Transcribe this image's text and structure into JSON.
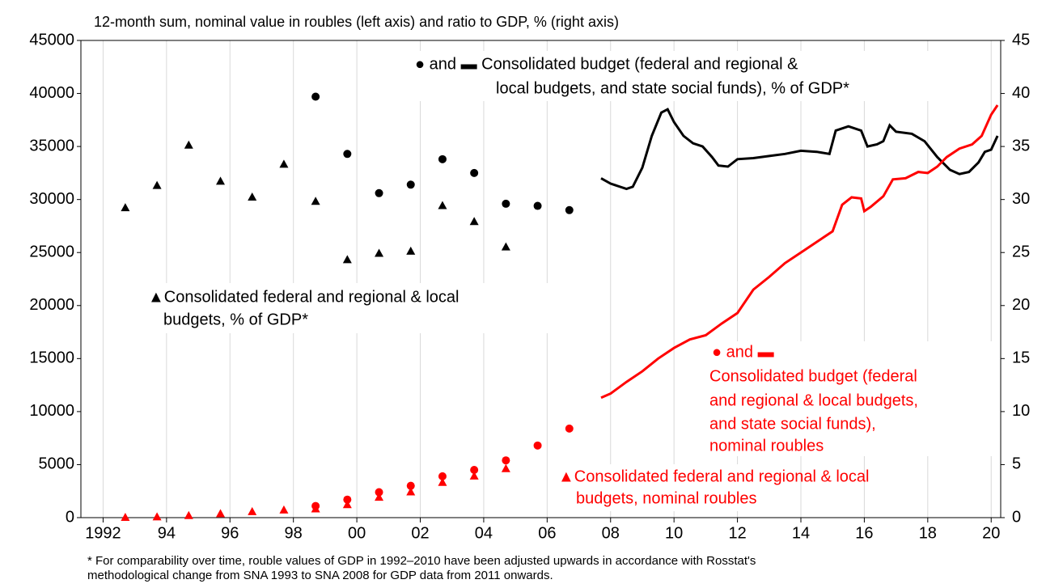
{
  "chart_data": {
    "type": "line",
    "title": "12-month sum, nominal value in roubles (left axis) and ratio to GDP, % (right axis)",
    "xlim": [
      1991.3,
      2020.3
    ],
    "xticks": [
      1992,
      {
        "value": 1994,
        "label": "94"
      },
      {
        "value": 1996,
        "label": "96"
      },
      {
        "value": 1998,
        "label": "98"
      },
      {
        "value": 2000,
        "label": "00"
      },
      {
        "value": 2002,
        "label": "02"
      },
      {
        "value": 2004,
        "label": "04"
      },
      {
        "value": 2006,
        "label": "06"
      },
      {
        "value": 2008,
        "label": "08"
      },
      {
        "value": 2010,
        "label": "10"
      },
      {
        "value": 2012,
        "label": "12"
      },
      {
        "value": 2014,
        "label": "14"
      },
      {
        "value": 2016,
        "label": "16"
      },
      {
        "value": 2018,
        "label": "18"
      },
      {
        "value": 2020,
        "label": "20"
      }
    ],
    "ylim": [
      0,
      45000
    ],
    "yticks": [
      0,
      5000,
      10000,
      15000,
      20000,
      25000,
      30000,
      35000,
      40000,
      45000
    ],
    "y2lim": [
      0,
      45
    ],
    "y2ticks": [
      0,
      5,
      10,
      15,
      20,
      25,
      30,
      35,
      40,
      45
    ],
    "grid": true,
    "series": [
      {
        "marker": "triangle",
        "color": "#000000",
        "axis": "y2",
        "x": [
          1992.7,
          1993.7,
          1994.7,
          1995.7,
          1996.7,
          1997.7,
          1998.7,
          1999.7,
          2000.7,
          2001.7,
          2002.7,
          2003.7,
          2004.7
        ],
        "values": [
          29.2,
          31.3,
          35.1,
          31.7,
          30.2,
          33.3,
          29.8,
          24.3,
          24.9,
          25.1,
          29.4,
          27.9,
          25.5
        ]
      },
      {
        "marker": "circle",
        "color": "#000000",
        "axis": "y2",
        "x": [
          1998.7,
          1999.7,
          2000.7,
          2001.7,
          2002.7,
          2003.7,
          2004.7,
          2005.7,
          2006.7
        ],
        "values": [
          39.7,
          34.3,
          30.6,
          31.4,
          33.8,
          32.5,
          29.6,
          29.4,
          29.0
        ]
      },
      {
        "marker": "line",
        "color": "#000000",
        "axis": "y2",
        "x": [
          2007.7,
          2008.0,
          2008.5,
          2008.7,
          2009.0,
          2009.3,
          2009.6,
          2009.8,
          2010.0,
          2010.3,
          2010.6,
          2010.9,
          2011.2,
          2011.4,
          2011.7,
          2012.0,
          2012.5,
          2013.0,
          2013.5,
          2014.0,
          2014.5,
          2014.9,
          2015.1,
          2015.5,
          2015.9,
          2016.1,
          2016.4,
          2016.6,
          2016.8,
          2017.0,
          2017.5,
          2017.9,
          2018.3,
          2018.7,
          2019.0,
          2019.3,
          2019.6,
          2019.8,
          2020.0,
          2020.2
        ],
        "values": [
          32.0,
          31.5,
          31.0,
          31.2,
          33.0,
          36.0,
          38.2,
          38.5,
          37.3,
          36.0,
          35.3,
          35.0,
          34.0,
          33.2,
          33.1,
          33.8,
          33.9,
          34.1,
          34.3,
          34.6,
          34.5,
          34.3,
          36.5,
          36.9,
          36.5,
          35.0,
          35.2,
          35.5,
          37.0,
          36.4,
          36.2,
          35.5,
          34.0,
          32.8,
          32.4,
          32.6,
          33.5,
          34.5,
          34.7,
          36.0
        ]
      },
      {
        "marker": "line",
        "color": "#ff0000",
        "x": [
          2007.7,
          2008.0,
          2008.5,
          2009.0,
          2009.5,
          2010.0,
          2010.5,
          2011.0,
          2011.5,
          2012.0,
          2012.5,
          2013.0,
          2013.5,
          2014.0,
          2014.5,
          2015.0,
          2015.3,
          2015.6,
          2015.9,
          2016.0,
          2016.2,
          2016.6,
          2016.9,
          2017.3,
          2017.7,
          2018.0,
          2018.3,
          2018.6,
          2019.0,
          2019.4,
          2019.7,
          2020.0,
          2020.2
        ],
        "values": [
          11300,
          11700,
          12800,
          13800,
          15000,
          16000,
          16800,
          17200,
          18300,
          19300,
          21500,
          22700,
          24000,
          25000,
          26000,
          27000,
          29500,
          30200,
          30100,
          28900,
          29300,
          30300,
          31900,
          32000,
          32600,
          32500,
          33100,
          34000,
          34800,
          35200,
          36000,
          38000,
          38900
        ]
      },
      {
        "marker": "circle",
        "color": "#ff0000",
        "x": [
          1998.7,
          1999.7,
          2000.7,
          2001.7,
          2002.7,
          2003.7,
          2004.7,
          2005.7,
          2006.7
        ],
        "values": [
          1100,
          1700,
          2400,
          3000,
          3900,
          4500,
          5400,
          6800,
          8400
        ]
      },
      {
        "marker": "triangle",
        "color": "#ff0000",
        "x": [
          1992.7,
          1993.7,
          1994.7,
          1995.7,
          1996.7,
          1997.7,
          1998.7,
          1999.7,
          2000.7,
          2001.7,
          2002.7,
          2003.7,
          2004.7
        ],
        "values": [
          0,
          50,
          170,
          350,
          540,
          700,
          800,
          1200,
          1900,
          2400,
          3300,
          3900,
          4600
        ]
      }
    ],
    "annotations": [
      {
        "color": "#000000",
        "lines": [
          "● and ▬ Consolidated budget (federal and regional &",
          "local budgets, and state social funds), % of GDP*"
        ]
      },
      {
        "color": "#000000",
        "lines": [
          "▲Consolidated federal and regional & local",
          "budgets, % of GDP*"
        ]
      },
      {
        "color": "#ff0000",
        "lines": [
          "● and ▬",
          "Consolidated budget (federal",
          "and regional & local budgets,",
          "and state social funds),",
          "nominal roubles"
        ]
      },
      {
        "color": "#ff0000",
        "lines": [
          "▲Consolidated federal and regional & local",
          "budgets, nominal roubles"
        ]
      }
    ],
    "footnote": [
      "* For comparability over time, rouble values of GDP in 1992–2010 have been adjusted upwards in accordance with Rosstat's",
      "methodological change from SNA 1993 to SNA 2008 for GDP data from 2011 onwards."
    ]
  }
}
